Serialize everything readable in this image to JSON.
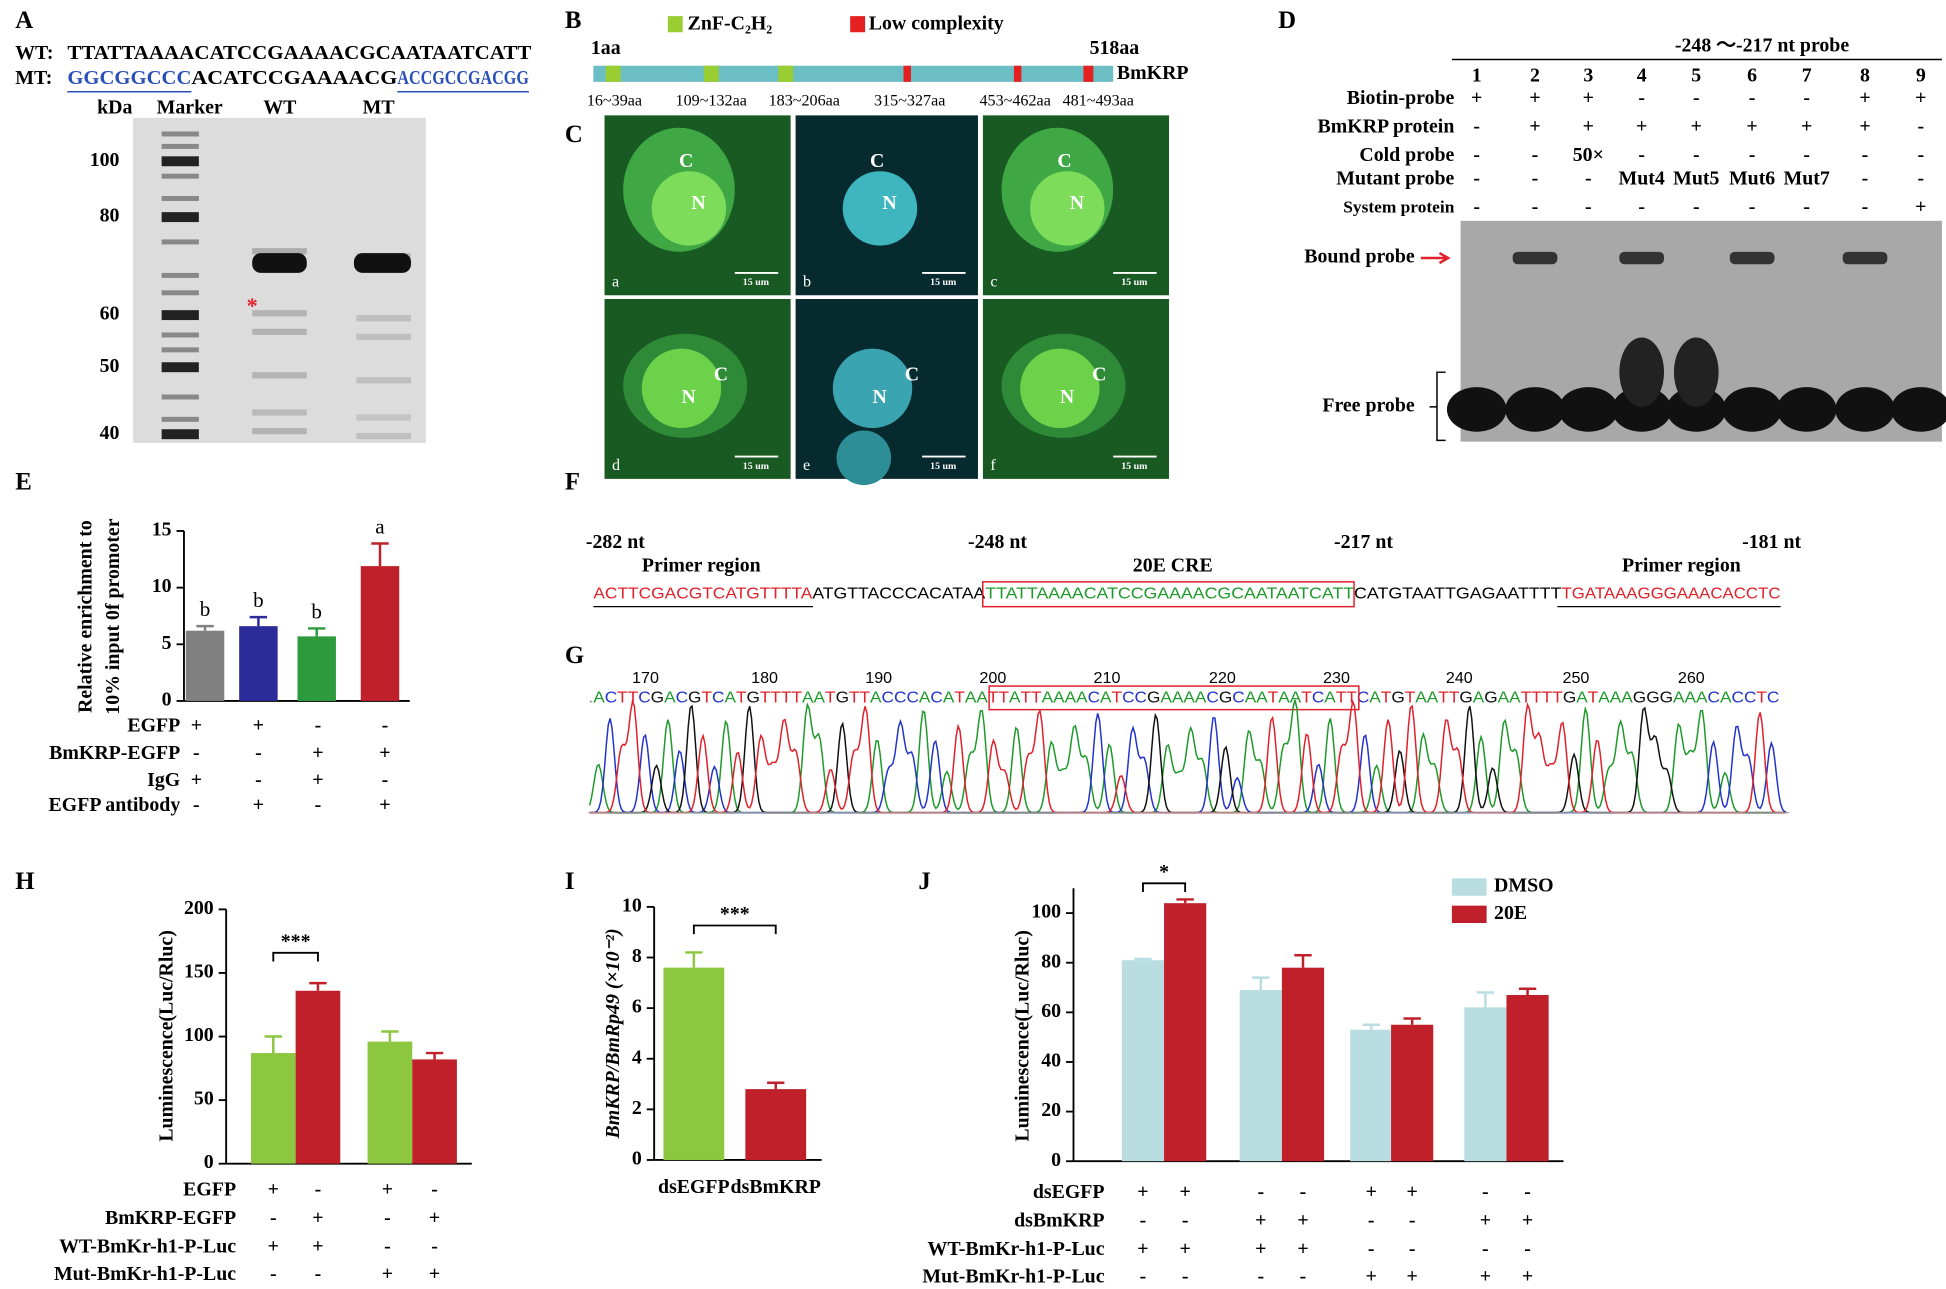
{
  "figure": {
    "panel_letters": [
      "A",
      "B",
      "C",
      "D",
      "E",
      "F",
      "G",
      "H",
      "I",
      "J"
    ],
    "A": {
      "wt_label": "WT:",
      "wt_seq": "TTATTAAAACATCCGAAAACGCAATAATCATT",
      "mt_label": "MT:",
      "mt_seq": [
        "GGCGGCCC",
        "ACATCCGAAAACG",
        "ACCGCCGACGG"
      ],
      "kda": "kDa",
      "lanes": [
        "Marker",
        "WT",
        "MT"
      ],
      "markers": [
        100,
        80,
        60,
        50,
        40
      ],
      "asterisk": "*"
    },
    "B": {
      "legend": [
        "ZnF-C₂H₂",
        "Low complexity"
      ],
      "start": "1aa",
      "end": "518aa",
      "protein": "BmKRP",
      "domains": [
        "16~39aa",
        "109~132aa",
        "183~206aa",
        "315~327aa",
        "453~462aa",
        "481~493aa"
      ]
    },
    "C": {
      "subpanels": [
        "a",
        "b",
        "c",
        "d",
        "e",
        "f"
      ],
      "cytoplasm": "C",
      "nucleus": "N",
      "scale": "15 um"
    },
    "D": {
      "probe": "-248 ～-217 nt probe",
      "lanes": [
        1,
        2,
        3,
        4,
        5,
        6,
        7,
        8,
        9
      ],
      "rows": [
        {
          "name": "Biotin-probe",
          "marks": [
            "+",
            "+",
            "+",
            "-",
            "-",
            "-",
            "-",
            "+",
            "+"
          ]
        },
        {
          "name": "BmKRP protein",
          "marks": [
            "-",
            "+",
            "+",
            "+",
            "+",
            "+",
            "+",
            "+",
            "-"
          ]
        },
        {
          "name": "Cold probe",
          "marks": [
            "-",
            "-",
            "50×",
            "-",
            "-",
            "-",
            "-",
            "-",
            "-"
          ]
        },
        {
          "name": "Mutant probe",
          "marks": [
            "-",
            "-",
            "-",
            "Mut4",
            "Mut5",
            "Mut6",
            "Mut7",
            "-",
            "-"
          ]
        },
        {
          "name": "System protein",
          "marks": [
            "-",
            "-",
            "-",
            "-",
            "-",
            "-",
            "-",
            "-",
            "+"
          ]
        }
      ],
      "bound": "Bound probe",
      "free": "Free probe"
    },
    "F": {
      "positions": [
        "-282 nt",
        "-248 nt",
        "-217 nt",
        "-181 nt"
      ],
      "cre": "20E CRE",
      "primer": [
        "Primer region",
        "Primer region"
      ],
      "sequence": [
        "ACTTCGACGTCATGTTTTA",
        "ATGTTACCCACATAA",
        "TTATTAAAACATCCGAAAACGCAATAATCATT",
        "CATGTAATTGAGAATTTT",
        "TGATAAAGGGAAACACCTC"
      ]
    },
    "G": {
      "positions": [
        170,
        180,
        190,
        200,
        210,
        220,
        230,
        240,
        250,
        260
      ],
      "sequence": ".ACTTCGACGTCATGTTTTAATGTTACCCACATAATTATTAAAACATCCGAAAACGCAATAATCATTCATGTAATTGAGAATTTTGATAAAGGGAAACACCTC"
    }
  },
  "chart_data": [
    {
      "type": "bar",
      "ylabel": [
        "Relative enrichment to",
        "10% input 0f promoter"
      ],
      "values": [
        6.2,
        6.6,
        5.7,
        11.9
      ],
      "errors": [
        0.4,
        0.8,
        0.7,
        2.0
      ],
      "colors": [
        "#808080",
        "#2b2b9a",
        "#2e9a3e",
        "#c0202a"
      ],
      "group_labels": [
        "b",
        "b",
        "b",
        "a"
      ],
      "ylim": [
        0,
        15
      ],
      "yticks": [
        0,
        5,
        10,
        15
      ],
      "conditions": [
        {
          "name": "EGFP",
          "marks": [
            "+",
            "+",
            "-",
            "-"
          ]
        },
        {
          "name": "BmKRP-EGFP",
          "marks": [
            "-",
            "-",
            "+",
            "+"
          ]
        },
        {
          "name": "IgG",
          "marks": [
            "+",
            "-",
            "+",
            "-"
          ]
        },
        {
          "name": "EGFP antibody",
          "marks": [
            "-",
            "+",
            "-",
            "+"
          ]
        }
      ]
    },
    {
      "type": "bar",
      "ylabel": [
        "Luminescence(Luc/Rluc)"
      ],
      "series": [
        {
          "color": "#8dc63f",
          "values": [
            87,
            96
          ],
          "errors": [
            13,
            8
          ]
        },
        {
          "color": "#c0202a",
          "values": [
            136,
            82
          ],
          "errors": [
            6,
            5
          ]
        }
      ],
      "ylim": [
        0,
        200
      ],
      "yticks": [
        0,
        50,
        100,
        150,
        200
      ],
      "significance": "***",
      "conditions": [
        {
          "name": "EGFP",
          "marks": [
            "+",
            "-",
            "+",
            "-"
          ]
        },
        {
          "name": "BmKRP-EGFP",
          "marks": [
            "-",
            "+",
            "-",
            "+"
          ]
        },
        {
          "name": "WT-BmKr-h1-P-Luc",
          "marks": [
            "+",
            "+",
            "-",
            "-"
          ]
        },
        {
          "name": "Mut-BmKr-h1-P-Luc",
          "marks": [
            "-",
            "-",
            "+",
            "+"
          ]
        }
      ]
    },
    {
      "type": "bar",
      "ylabel": [
        "BmKRP/BmRp49 (×10⁻²)"
      ],
      "categories": [
        "dsEGFP",
        "dsBmKRP"
      ],
      "values": [
        7.6,
        2.8
      ],
      "errors": [
        0.6,
        0.25
      ],
      "colors": [
        "#8dc63f",
        "#c0202a"
      ],
      "ylim": [
        0,
        10
      ],
      "yticks": [
        0,
        2,
        4,
        6,
        8,
        10
      ],
      "significance": "***"
    },
    {
      "type": "bar",
      "ylabel": [
        "Luminescence(Luc/Rluc)"
      ],
      "series": [
        {
          "name": "DMSO",
          "color": "#b9dde0",
          "values": [
            81,
            69,
            53,
            62
          ],
          "errors": [
            0.5,
            5,
            2,
            6
          ]
        },
        {
          "name": "20E",
          "color": "#c0202a",
          "values": [
            104,
            78,
            55,
            67
          ],
          "errors": [
            1.5,
            5,
            2.5,
            2.5
          ]
        }
      ],
      "ylim": [
        0,
        110
      ],
      "yticks": [
        0,
        20,
        40,
        60,
        80,
        100
      ],
      "significance": "*",
      "conditions": [
        {
          "name": "dsEGFP",
          "marks": [
            "+",
            "+",
            "-",
            "-",
            "+",
            "+",
            "-",
            "-"
          ]
        },
        {
          "name": "dsBmKRP",
          "marks": [
            "-",
            "-",
            "+",
            "+",
            "-",
            "-",
            "+",
            "+"
          ]
        },
        {
          "name": "WT-BmKr-h1-P-Luc",
          "marks": [
            "+",
            "+",
            "+",
            "+",
            "-",
            "-",
            "-",
            "-"
          ]
        },
        {
          "name": "Mut-BmKr-h1-P-Luc",
          "marks": [
            "-",
            "-",
            "-",
            "-",
            "+",
            "+",
            "+",
            "+"
          ]
        }
      ]
    }
  ]
}
